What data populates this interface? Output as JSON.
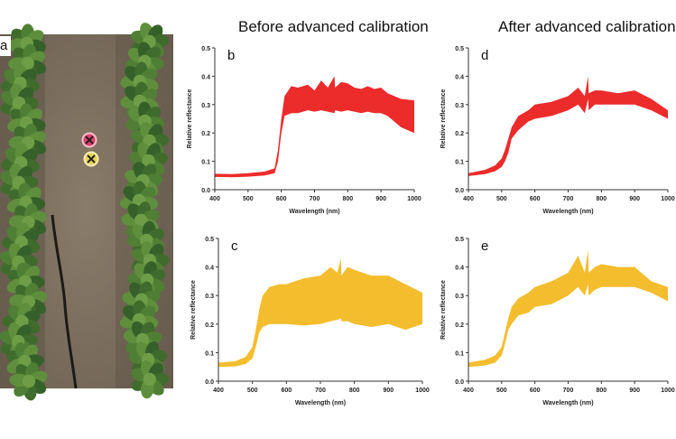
{
  "headers": {
    "before": "Before advanced calibration",
    "after": "After advanced calibration"
  },
  "photo": {
    "panel_label": "a"
  },
  "colors": {
    "red": "#ec2b2b",
    "yellow": "#f4bd2e"
  },
  "chart_data": [
    {
      "type": "area",
      "panel_label": "b",
      "xlabel": "Wavelength (nm)",
      "ylabel": "Relative reflectance",
      "xlim": [
        400,
        1000
      ],
      "ylim": [
        0,
        0.5
      ],
      "xticks": [
        "400",
        "500",
        "600",
        "700",
        "800",
        "900",
        "1000"
      ],
      "yticks": [
        "0.0",
        "0.1",
        "0.2",
        "0.3",
        "0.4",
        "0.5"
      ],
      "color": "#ec2b2b",
      "x": [
        400,
        450,
        500,
        550,
        580,
        590,
        600,
        610,
        630,
        650,
        680,
        700,
        720,
        740,
        760,
        762,
        780,
        800,
        820,
        840,
        860,
        880,
        900,
        920,
        940,
        960,
        1000
      ],
      "upper": [
        0.056,
        0.055,
        0.058,
        0.064,
        0.075,
        0.14,
        0.25,
        0.33,
        0.365,
        0.36,
        0.37,
        0.35,
        0.385,
        0.36,
        0.4,
        0.36,
        0.38,
        0.375,
        0.36,
        0.355,
        0.365,
        0.355,
        0.36,
        0.34,
        0.33,
        0.32,
        0.315
      ],
      "lower": [
        0.045,
        0.044,
        0.046,
        0.05,
        0.058,
        0.1,
        0.2,
        0.26,
        0.27,
        0.27,
        0.28,
        0.275,
        0.28,
        0.275,
        0.27,
        0.28,
        0.275,
        0.28,
        0.275,
        0.27,
        0.275,
        0.27,
        0.27,
        0.26,
        0.24,
        0.22,
        0.2
      ]
    },
    {
      "type": "area",
      "panel_label": "c",
      "xlabel": "Wavelength (nm)",
      "ylabel": "Relative reflectance",
      "xlim": [
        400,
        1000
      ],
      "ylim": [
        0,
        0.5
      ],
      "xticks": [
        "400",
        "500",
        "600",
        "700",
        "800",
        "900",
        "1000"
      ],
      "yticks": [
        "0.0",
        "0.1",
        "0.2",
        "0.3",
        "0.4",
        "0.5"
      ],
      "color": "#f4bd2e",
      "x": [
        400,
        450,
        480,
        500,
        510,
        520,
        530,
        550,
        580,
        600,
        650,
        700,
        730,
        750,
        760,
        762,
        780,
        800,
        850,
        900,
        950,
        1000
      ],
      "upper": [
        0.065,
        0.07,
        0.085,
        0.12,
        0.18,
        0.25,
        0.3,
        0.33,
        0.34,
        0.34,
        0.36,
        0.37,
        0.4,
        0.38,
        0.43,
        0.37,
        0.4,
        0.39,
        0.37,
        0.37,
        0.34,
        0.31
      ],
      "lower": [
        0.05,
        0.052,
        0.06,
        0.08,
        0.12,
        0.17,
        0.19,
        0.2,
        0.2,
        0.2,
        0.195,
        0.2,
        0.21,
        0.215,
        0.22,
        0.21,
        0.21,
        0.2,
        0.19,
        0.2,
        0.18,
        0.2
      ]
    },
    {
      "type": "area",
      "panel_label": "d",
      "xlabel": "Wavelength (nm)",
      "ylabel": "Relative reflectance",
      "xlim": [
        400,
        1000
      ],
      "ylim": [
        0,
        0.5
      ],
      "xticks": [
        "400",
        "500",
        "600",
        "700",
        "800",
        "900",
        "1000"
      ],
      "yticks": [
        "0.0",
        "0.1",
        "0.2",
        "0.3",
        "0.4",
        "0.5"
      ],
      "color": "#ec2b2b",
      "x": [
        400,
        450,
        480,
        500,
        510,
        520,
        530,
        550,
        580,
        600,
        650,
        700,
        730,
        750,
        760,
        762,
        780,
        800,
        850,
        900,
        950,
        1000
      ],
      "upper": [
        0.058,
        0.07,
        0.085,
        0.11,
        0.14,
        0.18,
        0.22,
        0.26,
        0.28,
        0.3,
        0.31,
        0.33,
        0.36,
        0.33,
        0.4,
        0.34,
        0.35,
        0.35,
        0.34,
        0.35,
        0.32,
        0.28
      ],
      "lower": [
        0.048,
        0.055,
        0.065,
        0.08,
        0.1,
        0.13,
        0.18,
        0.21,
        0.24,
        0.25,
        0.26,
        0.28,
        0.3,
        0.27,
        0.32,
        0.28,
        0.3,
        0.3,
        0.3,
        0.3,
        0.28,
        0.25
      ]
    },
    {
      "type": "area",
      "panel_label": "e",
      "xlabel": "Wavelength (nm)",
      "ylabel": "Relative reflectance",
      "xlim": [
        400,
        1000
      ],
      "ylim": [
        0,
        0.5
      ],
      "xticks": [
        "400",
        "500",
        "600",
        "700",
        "800",
        "900",
        "1000"
      ],
      "yticks": [
        "0.0",
        "0.1",
        "0.2",
        "0.3",
        "0.4",
        "0.5"
      ],
      "color": "#f4bd2e",
      "x": [
        400,
        450,
        480,
        500,
        510,
        520,
        530,
        550,
        580,
        600,
        650,
        700,
        730,
        750,
        760,
        762,
        780,
        800,
        850,
        900,
        950,
        1000
      ],
      "upper": [
        0.065,
        0.075,
        0.09,
        0.12,
        0.17,
        0.22,
        0.26,
        0.29,
        0.31,
        0.33,
        0.35,
        0.38,
        0.44,
        0.38,
        0.46,
        0.38,
        0.4,
        0.41,
        0.4,
        0.4,
        0.35,
        0.33
      ],
      "lower": [
        0.05,
        0.055,
        0.065,
        0.09,
        0.13,
        0.18,
        0.2,
        0.23,
        0.24,
        0.26,
        0.27,
        0.3,
        0.33,
        0.3,
        0.34,
        0.3,
        0.32,
        0.33,
        0.33,
        0.33,
        0.31,
        0.28
      ]
    }
  ]
}
